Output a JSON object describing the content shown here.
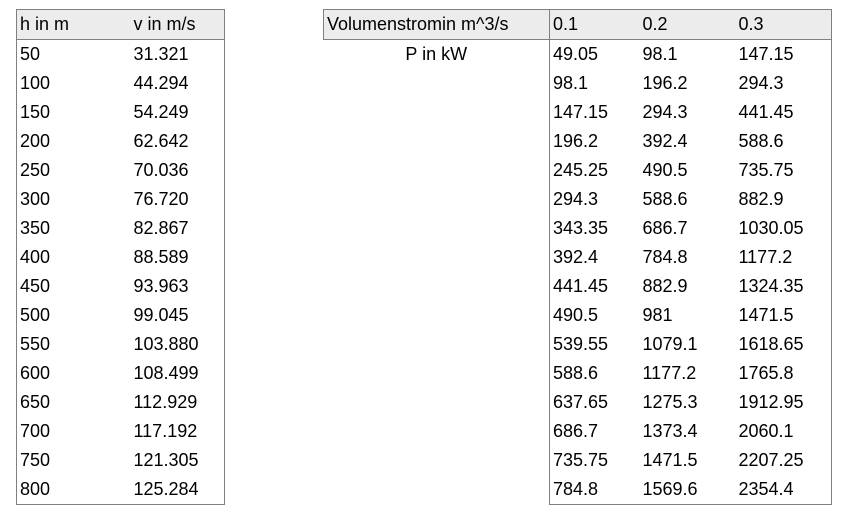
{
  "left_table": {
    "headers": [
      "h in m",
      "v in m/s"
    ],
    "rows": [
      [
        "50",
        "31.321"
      ],
      [
        "100",
        "44.294"
      ],
      [
        "150",
        "54.249"
      ],
      [
        "200",
        "62.642"
      ],
      [
        "250",
        "70.036"
      ],
      [
        "300",
        "76.720"
      ],
      [
        "350",
        "82.867"
      ],
      [
        "400",
        "88.589"
      ],
      [
        "450",
        "93.963"
      ],
      [
        "500",
        "99.045"
      ],
      [
        "550",
        "103.880"
      ],
      [
        "600",
        "108.499"
      ],
      [
        "650",
        "112.929"
      ],
      [
        "700",
        "117.192"
      ],
      [
        "750",
        "121.305"
      ],
      [
        "800",
        "125.284"
      ]
    ]
  },
  "right_table": {
    "header_label": "Volumenstromin m^3/s",
    "volumes": [
      "0.1",
      "0.2",
      "0.3"
    ],
    "power_label": "P in kW",
    "rows": [
      [
        "49.05",
        "98.1",
        "147.15"
      ],
      [
        "98.1",
        "196.2",
        "294.3"
      ],
      [
        "147.15",
        "294.3",
        "441.45"
      ],
      [
        "196.2",
        "392.4",
        "588.6"
      ],
      [
        "245.25",
        "490.5",
        "735.75"
      ],
      [
        "294.3",
        "588.6",
        "882.9"
      ],
      [
        "343.35",
        "686.7",
        "1030.05"
      ],
      [
        "392.4",
        "784.8",
        "1177.2"
      ],
      [
        "441.45",
        "882.9",
        "1324.35"
      ],
      [
        "490.5",
        "981",
        "1471.5"
      ],
      [
        "539.55",
        "1079.1",
        "1618.65"
      ],
      [
        "588.6",
        "1177.2",
        "1765.8"
      ],
      [
        "637.65",
        "1275.3",
        "1912.95"
      ],
      [
        "686.7",
        "1373.4",
        "2060.1"
      ],
      [
        "735.75",
        "1471.5",
        "2207.25"
      ],
      [
        "784.8",
        "1569.6",
        "2354.4"
      ]
    ]
  }
}
